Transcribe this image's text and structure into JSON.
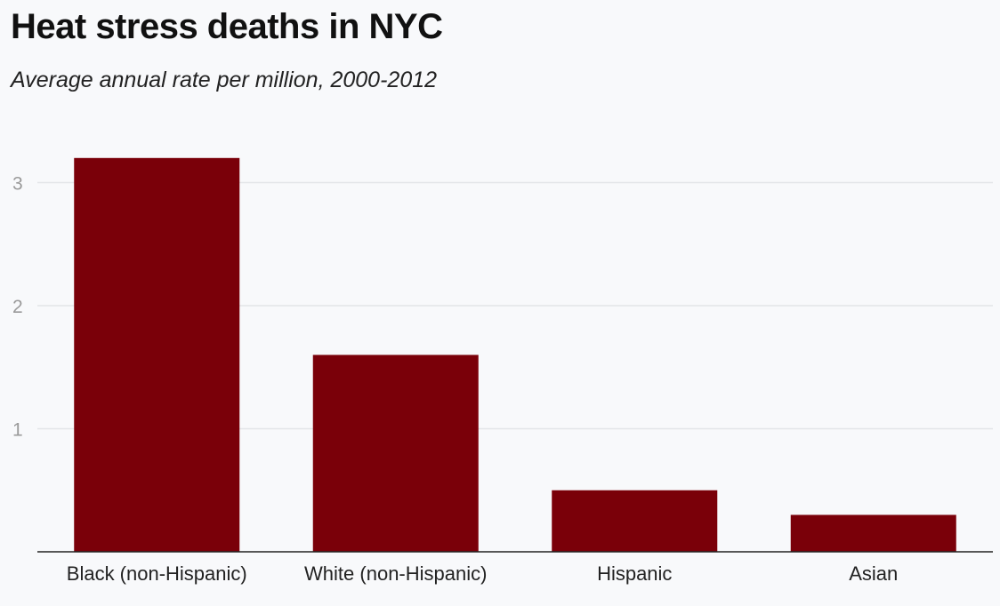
{
  "header": {
    "title": "Heat stress deaths in NYC",
    "subtitle": "Average annual rate per million, 2000-2012"
  },
  "colors": {
    "bar": "#7a0009",
    "grid": "#e3e5e8",
    "axis": "#222222",
    "tick_label": "#9a9a9a",
    "category_label": "#222222"
  },
  "chart_data": {
    "type": "bar",
    "title": "Heat stress deaths in NYC",
    "subtitle": "Average annual rate per million, 2000-2012",
    "categories": [
      "Black (non-Hispanic)",
      "White (non-Hispanic)",
      "Hispanic",
      "Asian"
    ],
    "values": [
      3.2,
      1.6,
      0.5,
      0.3
    ],
    "xlabel": "",
    "ylabel": "",
    "ylim": [
      0,
      3.3
    ],
    "yticks": [
      1,
      2,
      3
    ],
    "grid": true,
    "legend": "none"
  }
}
